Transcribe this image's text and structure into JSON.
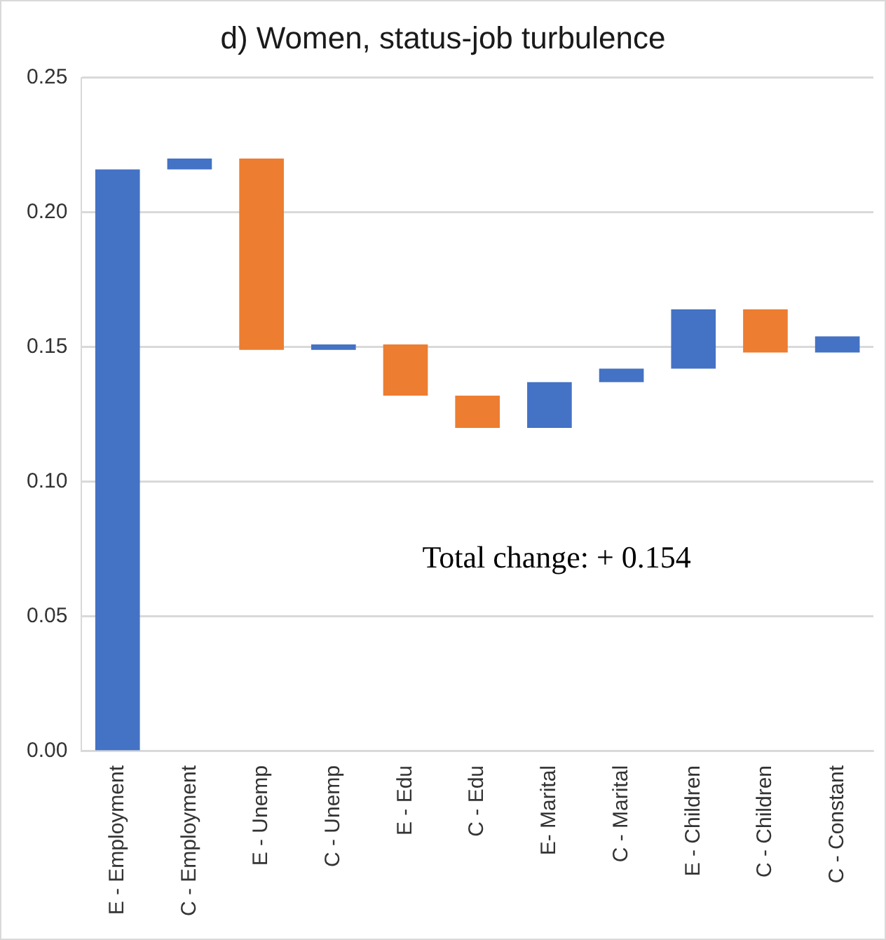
{
  "chart_data": {
    "type": "bar",
    "title": "d) Women, status-job turbulence",
    "categories": [
      "E - Employment",
      "C - Employment",
      "E - Unemp",
      "C - Unemp",
      "E - Edu",
      "C - Edu",
      "E- Marital",
      "C - Marital",
      "E - Children",
      "C - Children",
      "C - Constant"
    ],
    "base": [
      0,
      0.216,
      0.22,
      0.149,
      0.151,
      0.132,
      0.12,
      0.137,
      0.142,
      0.164,
      0.148
    ],
    "values": [
      0.216,
      0.004,
      -0.071,
      0.002,
      -0.019,
      -0.012,
      0.017,
      0.005,
      0.022,
      -0.016,
      0.006
    ],
    "colors": [
      "#4472c4",
      "#4472c4",
      "#ed7d31",
      "#4472c4",
      "#ed7d31",
      "#ed7d31",
      "#4472c4",
      "#4472c4",
      "#4472c4",
      "#ed7d31",
      "#4472c4"
    ],
    "ylim": [
      0,
      0.25
    ],
    "yticks": [
      {
        "value": 0,
        "label": "0.00"
      },
      {
        "value": 0.05,
        "label": "0.05"
      },
      {
        "value": 0.1,
        "label": "0.10"
      },
      {
        "value": 0.15,
        "label": "0.15"
      },
      {
        "value": 0.2,
        "label": "0.20"
      },
      {
        "value": 0.25,
        "label": "0.25"
      }
    ],
    "grid": "y",
    "legend": false,
    "annotations": [
      "Total change: + 0.154"
    ]
  }
}
